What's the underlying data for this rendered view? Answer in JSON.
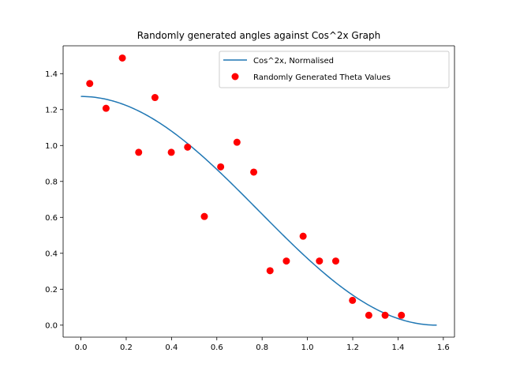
{
  "chart_data": {
    "type": "scatter",
    "title": "Randomly generated angles against Cos^2x Graph",
    "xlabel": "",
    "ylabel": "",
    "xlim": [
      -0.0785,
      1.6493
    ],
    "ylim": [
      -0.0668,
      1.555
    ],
    "xticks": [
      0.0,
      0.2,
      0.4,
      0.6,
      0.8,
      1.0,
      1.2,
      1.4,
      1.6
    ],
    "xtick_labels": [
      "0.0",
      "0.2",
      "0.4",
      "0.6",
      "0.8",
      "1.0",
      "1.2",
      "1.4",
      "1.6"
    ],
    "yticks": [
      0.0,
      0.2,
      0.4,
      0.6,
      0.8,
      1.0,
      1.2,
      1.4
    ],
    "ytick_labels": [
      "0.0",
      "0.2",
      "0.4",
      "0.6",
      "0.8",
      "1.0",
      "1.2",
      "1.4"
    ],
    "grid": false,
    "legend_position": "top-right",
    "series": [
      {
        "name": "Cos^2x, Normalised",
        "kind": "line",
        "color": "#1f77b4",
        "function": "cos^2(x)",
        "scale": 1.273,
        "x_range": [
          0,
          1.5708
        ]
      },
      {
        "name": "Randomly Generated Theta Values",
        "kind": "scatter",
        "color": "#ff0000",
        "points": [
          {
            "x": 0.039,
            "y": 1.345
          },
          {
            "x": 0.111,
            "y": 1.207
          },
          {
            "x": 0.183,
            "y": 1.487
          },
          {
            "x": 0.255,
            "y": 0.962
          },
          {
            "x": 0.327,
            "y": 1.267
          },
          {
            "x": 0.399,
            "y": 0.962
          },
          {
            "x": 0.471,
            "y": 0.991
          },
          {
            "x": 0.545,
            "y": 0.605
          },
          {
            "x": 0.617,
            "y": 0.881
          },
          {
            "x": 0.689,
            "y": 1.018
          },
          {
            "x": 0.763,
            "y": 0.852
          },
          {
            "x": 0.835,
            "y": 0.303
          },
          {
            "x": 0.907,
            "y": 0.357
          },
          {
            "x": 0.981,
            "y": 0.495
          },
          {
            "x": 1.053,
            "y": 0.357
          },
          {
            "x": 1.125,
            "y": 0.357
          },
          {
            "x": 1.199,
            "y": 0.138
          },
          {
            "x": 1.271,
            "y": 0.055
          },
          {
            "x": 1.343,
            "y": 0.055
          },
          {
            "x": 1.415,
            "y": 0.055
          }
        ]
      }
    ]
  }
}
